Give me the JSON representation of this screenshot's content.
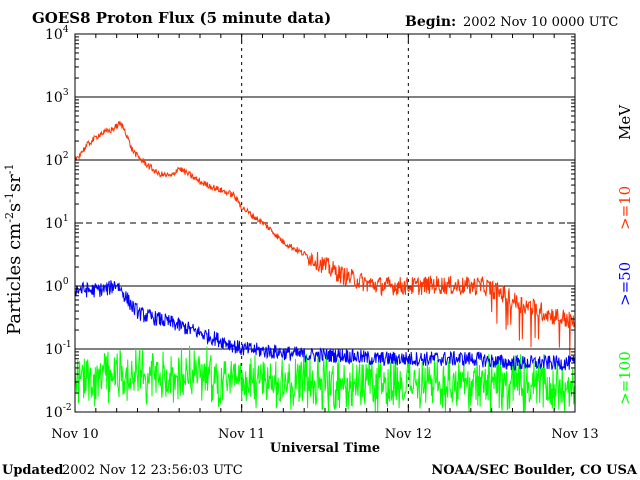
{
  "header": {
    "title": "GOES8 Proton Flux (5 minute data)",
    "begin_label": "Begin:",
    "begin_value": "2002 Nov 10 0000 UTC"
  },
  "footer": {
    "updated_label": "Updated",
    "updated_value": "2002 Nov 12 23:56:03 UTC",
    "credit": "NOAA/SEC Boulder, CO USA"
  },
  "chart_data": {
    "type": "line",
    "title": "GOES8 Proton Flux (5 minute data)",
    "xlabel": "Universal Time",
    "ylabel": "Particles cm⁻²s⁻¹sr⁻¹",
    "ylabel_parts": {
      "base": "Particles cm",
      "e1": "-2",
      "mid1": "s",
      "e2": "-1",
      "mid2": "sr",
      "e3": "-1"
    },
    "x_ticks": [
      "Nov 10",
      "Nov 11",
      "Nov 12",
      "Nov 13"
    ],
    "x_range_days": [
      0,
      3
    ],
    "yscale": "log",
    "ylim": [
      0.01,
      10000
    ],
    "y_ticks": [
      {
        "mant": "10",
        "exp": "-2"
      },
      {
        "mant": "10",
        "exp": "-1"
      },
      {
        "mant": "10",
        "exp": "0"
      },
      {
        "mant": "10",
        "exp": "1"
      },
      {
        "mant": "10",
        "exp": "2"
      },
      {
        "mant": "10",
        "exp": "3"
      },
      {
        "mant": "10",
        "exp": "4"
      }
    ],
    "unit_label": "MeV",
    "series": [
      {
        "name": ">=10",
        "color": "#ff3300",
        "x": [
          0.0,
          0.08,
          0.15,
          0.22,
          0.27,
          0.3,
          0.34,
          0.38,
          0.42,
          0.5,
          0.58,
          0.62,
          0.68,
          0.75,
          0.85,
          0.95,
          1.0,
          1.05,
          1.15,
          1.25,
          1.35,
          1.45,
          1.6,
          1.75,
          1.85,
          1.95,
          2.05,
          2.15,
          2.3,
          2.45,
          2.55,
          2.65,
          2.75,
          2.85,
          2.95,
          3.0
        ],
        "y": [
          100,
          180,
          260,
          300,
          380,
          300,
          150,
          110,
          90,
          60,
          55,
          75,
          60,
          45,
          35,
          28,
          18,
          14,
          9,
          5,
          3.5,
          2.5,
          1.5,
          1.1,
          1.0,
          1.0,
          1.0,
          1.05,
          1.0,
          1.0,
          0.8,
          0.55,
          0.45,
          0.35,
          0.3,
          0.25
        ]
      },
      {
        "name": ">=50",
        "color": "#0000ff",
        "x": [
          0.0,
          0.1,
          0.2,
          0.25,
          0.3,
          0.35,
          0.4,
          0.5,
          0.6,
          0.7,
          0.8,
          0.9,
          1.0,
          1.2,
          1.4,
          1.6,
          1.8,
          2.0,
          2.2,
          2.4,
          2.6,
          2.8,
          3.0
        ],
        "y": [
          0.9,
          0.85,
          0.9,
          1.1,
          0.7,
          0.45,
          0.35,
          0.3,
          0.25,
          0.2,
          0.16,
          0.13,
          0.1,
          0.09,
          0.08,
          0.08,
          0.07,
          0.07,
          0.07,
          0.07,
          0.06,
          0.06,
          0.06
        ]
      },
      {
        "name": ">=100",
        "color": "#00ff00",
        "x": [
          0.0,
          0.5,
          1.0,
          1.5,
          2.0,
          2.5,
          3.0
        ],
        "y": [
          0.035,
          0.04,
          0.035,
          0.03,
          0.03,
          0.03,
          0.03
        ]
      }
    ]
  }
}
